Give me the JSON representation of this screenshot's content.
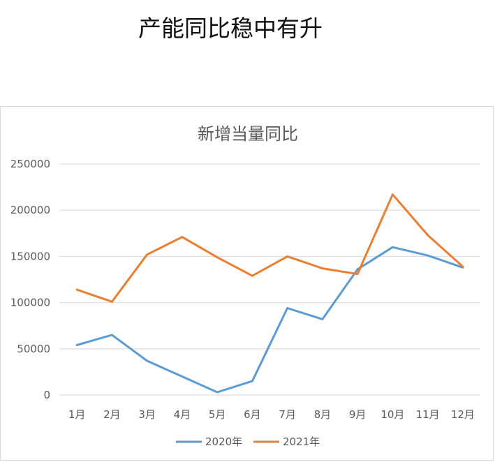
{
  "page": {
    "headline": "产能同比稳中有升"
  },
  "chart_data": {
    "type": "line",
    "title": "新增当量同比",
    "categories": [
      "1月",
      "2月",
      "3月",
      "4月",
      "5月",
      "6月",
      "7月",
      "8月",
      "9月",
      "10月",
      "11月",
      "12月"
    ],
    "series": [
      {
        "name": "2020年",
        "color": "#5b9bd5",
        "values": [
          54000,
          65000,
          37000,
          20000,
          3000,
          15000,
          94000,
          82000,
          136000,
          160000,
          151000,
          138000
        ]
      },
      {
        "name": "2021年",
        "color": "#ed7d31",
        "values": [
          114000,
          101000,
          152000,
          171000,
          149000,
          129000,
          150000,
          137000,
          131000,
          217000,
          173000,
          139000
        ]
      }
    ],
    "ylim": [
      0,
      250000
    ],
    "yticks": [
      0,
      50000,
      100000,
      150000,
      200000,
      250000
    ],
    "ytick_labels": [
      "0",
      "50000",
      "100000",
      "150000",
      "200000",
      "250000"
    ],
    "grid": true,
    "legend_position": "bottom",
    "gridline_color": "#d9d9d9"
  }
}
